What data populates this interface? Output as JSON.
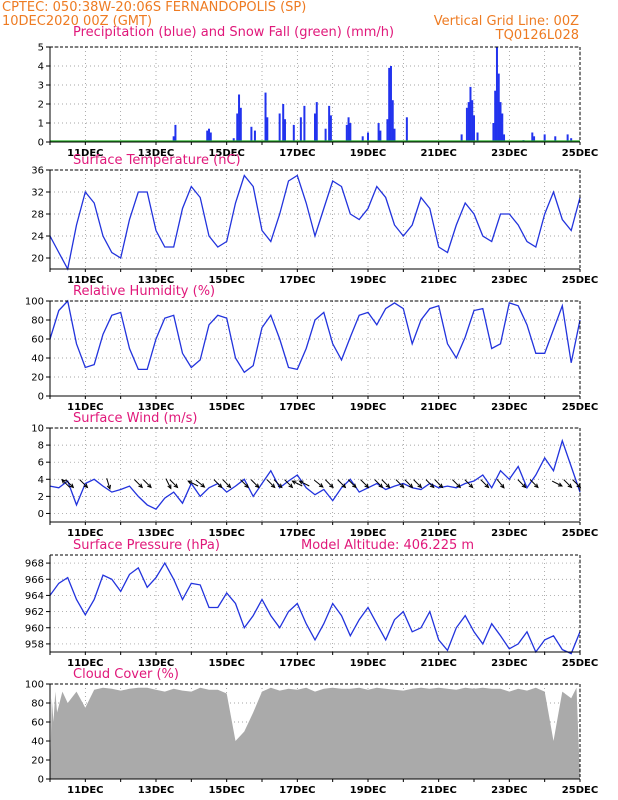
{
  "header": {
    "line1": "CPTEC:   050:38W-20:06S   FERNANDOPOLIS (SP)",
    "line2_left": "10DEC2020 00Z (GMT)",
    "line2_right": "Vertical Grid Line: 00Z",
    "code": "TQ0126L028"
  },
  "colors": {
    "header_text": "#ee7b22",
    "panel_title": "#e0187a",
    "line": "#2233dd",
    "precip": "#2233ee",
    "snow": "#22aa22",
    "cloud": "#aaaaaa",
    "grid": "#888888",
    "arrow": "#000000"
  },
  "x_tick_labels": [
    "11DEC",
    "13DEC",
    "15DEC",
    "17DEC",
    "19DEC",
    "21DEC",
    "23DEC",
    "25DEC"
  ],
  "chart_data": [
    {
      "id": "precip",
      "type": "bar",
      "title": "Precipitation (blue) and Snow Fall (green) (mm/h)",
      "x_unit": "day",
      "x_range": [
        10.0,
        25.0
      ],
      "ylim": [
        0,
        5
      ],
      "y_ticks": [
        0,
        1,
        2,
        3,
        4,
        5
      ],
      "grid": "dotted",
      "series": [
        {
          "name": "Precipitation",
          "color": "blue",
          "points": [
            [
              13.5,
              0.3
            ],
            [
              13.55,
              0.9
            ],
            [
              14.45,
              0.6
            ],
            [
              14.5,
              0.7
            ],
            [
              14.55,
              0.5
            ],
            [
              15.2,
              0.2
            ],
            [
              15.3,
              1.5
            ],
            [
              15.35,
              2.5
            ],
            [
              15.4,
              1.8
            ],
            [
              15.7,
              0.8
            ],
            [
              15.8,
              0.6
            ],
            [
              16.1,
              2.6
            ],
            [
              16.15,
              1.3
            ],
            [
              16.5,
              1.5
            ],
            [
              16.6,
              2.0
            ],
            [
              16.65,
              1.2
            ],
            [
              16.9,
              0.9
            ],
            [
              17.1,
              1.3
            ],
            [
              17.2,
              1.9
            ],
            [
              17.5,
              1.5
            ],
            [
              17.55,
              2.1
            ],
            [
              17.8,
              0.7
            ],
            [
              17.9,
              1.9
            ],
            [
              17.95,
              1.4
            ],
            [
              18.4,
              0.9
            ],
            [
              18.45,
              1.3
            ],
            [
              18.5,
              1.0
            ],
            [
              18.85,
              0.3
            ],
            [
              19.0,
              0.5
            ],
            [
              19.3,
              1.0
            ],
            [
              19.35,
              0.6
            ],
            [
              19.55,
              1.2
            ],
            [
              19.6,
              3.9
            ],
            [
              19.65,
              4.0
            ],
            [
              19.7,
              2.2
            ],
            [
              19.75,
              0.7
            ],
            [
              20.1,
              1.3
            ],
            [
              21.65,
              0.4
            ],
            [
              21.8,
              1.8
            ],
            [
              21.85,
              2.1
            ],
            [
              21.9,
              2.9
            ],
            [
              21.95,
              2.2
            ],
            [
              22.0,
              1.4
            ],
            [
              22.1,
              0.5
            ],
            [
              22.55,
              1.0
            ],
            [
              22.6,
              2.7
            ],
            [
              22.65,
              5.0
            ],
            [
              22.7,
              3.6
            ],
            [
              22.75,
              2.1
            ],
            [
              22.8,
              1.5
            ],
            [
              22.85,
              0.4
            ],
            [
              23.4,
              0.1
            ],
            [
              23.65,
              0.5
            ],
            [
              23.7,
              0.3
            ],
            [
              24.0,
              0.4
            ],
            [
              24.3,
              0.3
            ],
            [
              24.65,
              0.4
            ],
            [
              24.75,
              0.2
            ]
          ]
        },
        {
          "name": "Snow Fall",
          "color": "green",
          "constant": 0
        }
      ]
    },
    {
      "id": "temperature",
      "type": "line",
      "title": "Surface Temperature (nC)",
      "x_unit": "day",
      "x_range": [
        10.0,
        25.0
      ],
      "ylim": [
        18,
        36
      ],
      "y_ticks": [
        20,
        24,
        28,
        32,
        36
      ],
      "grid": "dotted",
      "x": [
        10.0,
        10.25,
        10.5,
        10.75,
        11.0,
        11.25,
        11.5,
        11.75,
        12.0,
        12.25,
        12.5,
        12.75,
        13.0,
        13.25,
        13.5,
        13.75,
        14.0,
        14.25,
        14.5,
        14.75,
        15.0,
        15.25,
        15.5,
        15.75,
        16.0,
        16.25,
        16.5,
        16.75,
        17.0,
        17.25,
        17.5,
        17.75,
        18.0,
        18.25,
        18.5,
        18.75,
        19.0,
        19.25,
        19.5,
        19.75,
        20.0,
        20.25,
        20.5,
        20.75,
        21.0,
        21.25,
        21.5,
        21.75,
        22.0,
        22.25,
        22.5,
        22.75,
        23.0,
        23.25,
        23.5,
        23.75,
        24.0,
        24.25,
        24.5,
        24.75,
        25.0
      ],
      "y": [
        24,
        21,
        18,
        26,
        32,
        30,
        24,
        21,
        20,
        27,
        32,
        32,
        25,
        22,
        22,
        29,
        33,
        31,
        24,
        22,
        23,
        30,
        35,
        33,
        25,
        23,
        28,
        34,
        35,
        30,
        24,
        29,
        34,
        33,
        28,
        27,
        29,
        33,
        31,
        26,
        24,
        26,
        31,
        29,
        22,
        21,
        26,
        30,
        28,
        24,
        23,
        28,
        28,
        26,
        23,
        22,
        28,
        32,
        27,
        25,
        31
      ]
    },
    {
      "id": "humidity",
      "type": "line",
      "title": "Relative Humidity (%)",
      "x_unit": "day",
      "x_range": [
        10.0,
        25.0
      ],
      "ylim": [
        0,
        100
      ],
      "y_ticks": [
        0,
        20,
        40,
        60,
        80,
        100
      ],
      "grid": "dotted",
      "x": [
        10.0,
        10.25,
        10.5,
        10.75,
        11.0,
        11.25,
        11.5,
        11.75,
        12.0,
        12.25,
        12.5,
        12.75,
        13.0,
        13.25,
        13.5,
        13.75,
        14.0,
        14.25,
        14.5,
        14.75,
        15.0,
        15.25,
        15.5,
        15.75,
        16.0,
        16.25,
        16.5,
        16.75,
        17.0,
        17.25,
        17.5,
        17.75,
        18.0,
        18.25,
        18.5,
        18.75,
        19.0,
        19.25,
        19.5,
        19.75,
        20.0,
        20.25,
        20.5,
        20.75,
        21.0,
        21.25,
        21.5,
        21.75,
        22.0,
        22.25,
        22.5,
        22.75,
        23.0,
        23.25,
        23.5,
        23.75,
        24.0,
        24.25,
        24.5,
        24.75,
        25.0
      ],
      "y": [
        60,
        90,
        100,
        55,
        30,
        33,
        65,
        85,
        88,
        50,
        28,
        28,
        60,
        82,
        85,
        45,
        30,
        38,
        75,
        85,
        82,
        40,
        25,
        32,
        72,
        85,
        60,
        30,
        28,
        50,
        80,
        88,
        55,
        38,
        62,
        85,
        88,
        75,
        92,
        98,
        92,
        55,
        80,
        92,
        95,
        55,
        40,
        62,
        90,
        92,
        50,
        55,
        98,
        95,
        75,
        45,
        45,
        70,
        95,
        35,
        80
      ]
    },
    {
      "id": "wind",
      "type": "line",
      "title": "Surface Wind (m/s)",
      "x_unit": "day",
      "x_range": [
        10.0,
        25.0
      ],
      "ylim": [
        -1,
        10
      ],
      "y_ticks": [
        0,
        2,
        4,
        6,
        8,
        10
      ],
      "grid": "dotted",
      "x": [
        10.0,
        10.25,
        10.5,
        10.75,
        11.0,
        11.25,
        11.5,
        11.75,
        12.0,
        12.25,
        12.5,
        12.75,
        13.0,
        13.25,
        13.5,
        13.75,
        14.0,
        14.25,
        14.5,
        14.75,
        15.0,
        15.25,
        15.5,
        15.75,
        16.0,
        16.25,
        16.5,
        16.75,
        17.0,
        17.25,
        17.5,
        17.75,
        18.0,
        18.25,
        18.5,
        18.75,
        19.0,
        19.25,
        19.5,
        19.75,
        20.0,
        20.25,
        20.5,
        20.75,
        21.0,
        21.25,
        21.5,
        21.75,
        22.0,
        22.25,
        22.5,
        22.75,
        23.0,
        23.25,
        23.5,
        23.75,
        24.0,
        24.25,
        24.5,
        24.75,
        25.0
      ],
      "y": [
        3.2,
        3.0,
        3.8,
        1.0,
        3.5,
        4.0,
        3.2,
        2.5,
        2.8,
        3.2,
        2.0,
        1.0,
        0.5,
        1.8,
        2.5,
        1.2,
        3.5,
        2.0,
        3.0,
        3.5,
        2.5,
        3.2,
        4.0,
        2.0,
        3.5,
        5.0,
        3.0,
        3.8,
        4.5,
        3.0,
        2.2,
        2.8,
        1.5,
        3.0,
        4.0,
        2.5,
        3.0,
        3.5,
        2.8,
        3.2,
        3.5,
        3.0,
        2.8,
        3.5,
        3.0,
        3.2,
        3.0,
        3.5,
        3.8,
        4.5,
        3.0,
        5.0,
        4.0,
        5.5,
        3.0,
        4.5,
        6.5,
        5.0,
        8.5,
        5.5,
        2.5
      ],
      "vectors": [
        {
          "x": 10.45,
          "u": -1,
          "v": 1
        },
        {
          "x": 10.55,
          "u": 1,
          "v": -1
        },
        {
          "x": 10.95,
          "u": 1,
          "v": -1
        },
        {
          "x": 11.65,
          "u": 0.3,
          "v": -1
        },
        {
          "x": 12.5,
          "u": 1,
          "v": -1
        },
        {
          "x": 12.75,
          "u": 1,
          "v": -1
        },
        {
          "x": 13.35,
          "u": 0.5,
          "v": -1
        },
        {
          "x": 13.5,
          "u": 1,
          "v": -1
        },
        {
          "x": 14.05,
          "u": -1,
          "v": 0.5
        },
        {
          "x": 14.25,
          "u": 1,
          "v": -0.8
        },
        {
          "x": 14.75,
          "u": 1,
          "v": -1
        },
        {
          "x": 15.0,
          "u": 1,
          "v": -1
        },
        {
          "x": 15.5,
          "u": 1,
          "v": -1
        },
        {
          "x": 15.8,
          "u": 1,
          "v": -1
        },
        {
          "x": 16.25,
          "u": 1,
          "v": -1
        },
        {
          "x": 16.45,
          "u": 1,
          "v": -1
        },
        {
          "x": 16.75,
          "u": 1,
          "v": -1
        },
        {
          "x": 17.0,
          "u": -1,
          "v": 0.5
        },
        {
          "x": 17.2,
          "u": -1,
          "v": 0.5
        },
        {
          "x": 17.6,
          "u": 1,
          "v": -0.8
        },
        {
          "x": 17.9,
          "u": 1,
          "v": -1
        },
        {
          "x": 18.25,
          "u": 1,
          "v": -1
        },
        {
          "x": 18.55,
          "u": 1,
          "v": -1
        },
        {
          "x": 18.9,
          "u": 1,
          "v": -1
        },
        {
          "x": 19.3,
          "u": 1,
          "v": -1
        },
        {
          "x": 19.5,
          "u": 1,
          "v": -1
        },
        {
          "x": 19.9,
          "u": 1,
          "v": -1
        },
        {
          "x": 20.15,
          "u": 1,
          "v": -1
        },
        {
          "x": 20.4,
          "u": 1,
          "v": -1
        },
        {
          "x": 20.75,
          "u": 1,
          "v": -1
        },
        {
          "x": 21.0,
          "u": 1,
          "v": -1
        },
        {
          "x": 21.5,
          "u": 1,
          "v": -1
        },
        {
          "x": 21.85,
          "u": 1,
          "v": -1
        },
        {
          "x": 22.3,
          "u": 1,
          "v": -1
        },
        {
          "x": 22.75,
          "u": 0.8,
          "v": -1
        },
        {
          "x": 23.35,
          "u": 1,
          "v": -1
        },
        {
          "x": 23.7,
          "u": 1,
          "v": -1
        },
        {
          "x": 24.35,
          "u": 1,
          "v": -0.5
        },
        {
          "x": 24.65,
          "u": 1,
          "v": -1
        },
        {
          "x": 24.9,
          "u": 1,
          "v": -1
        }
      ]
    },
    {
      "id": "pressure",
      "type": "line",
      "title": "Surface Pressure (hPa)",
      "annotation": "Model Altitude: 406.225 m",
      "x_unit": "day",
      "x_range": [
        10.0,
        25.0
      ],
      "ylim": [
        957,
        969
      ],
      "y_ticks": [
        958,
        960,
        962,
        964,
        966,
        968
      ],
      "grid": "dotted",
      "x": [
        10.0,
        10.25,
        10.5,
        10.75,
        11.0,
        11.25,
        11.5,
        11.75,
        12.0,
        12.25,
        12.5,
        12.75,
        13.0,
        13.25,
        13.5,
        13.75,
        14.0,
        14.25,
        14.5,
        14.75,
        15.0,
        15.25,
        15.5,
        15.75,
        16.0,
        16.25,
        16.5,
        16.75,
        17.0,
        17.25,
        17.5,
        17.75,
        18.0,
        18.25,
        18.5,
        18.75,
        19.0,
        19.25,
        19.5,
        19.75,
        20.0,
        20.25,
        20.5,
        20.75,
        21.0,
        21.25,
        21.5,
        21.75,
        22.0,
        22.25,
        22.5,
        22.75,
        23.0,
        23.25,
        23.5,
        23.75,
        24.0,
        24.25,
        24.5,
        24.75,
        25.0
      ],
      "y": [
        964,
        965.5,
        966.2,
        963.5,
        961.6,
        963.5,
        966.5,
        966,
        964.5,
        966.6,
        967.4,
        965,
        966.2,
        968,
        966,
        963.5,
        965.5,
        965.3,
        962.5,
        962.5,
        964.3,
        963,
        960,
        961.5,
        963.5,
        961.5,
        960,
        962,
        963,
        960.5,
        958.5,
        960.5,
        963,
        961.5,
        959,
        961,
        962.5,
        960.5,
        958.5,
        961,
        962,
        959.5,
        960,
        962,
        958.5,
        957.2,
        960,
        961.5,
        959.5,
        958,
        960.5,
        959,
        957.4,
        958,
        959.5,
        957,
        958.5,
        959,
        957.3,
        956.8,
        959.5
      ]
    },
    {
      "id": "cloud",
      "type": "area",
      "title": "Cloud Cover (%)",
      "x_unit": "day",
      "x_range": [
        10.0,
        25.0
      ],
      "ylim": [
        0,
        100
      ],
      "y_ticks": [
        0,
        20,
        40,
        60,
        80,
        100
      ],
      "grid": "dotted",
      "x": [
        10.0,
        10.05,
        10.1,
        10.15,
        10.2,
        10.35,
        10.5,
        10.75,
        11.0,
        11.25,
        11.5,
        11.75,
        12.0,
        12.25,
        12.5,
        12.75,
        13.0,
        13.25,
        13.5,
        13.75,
        14.0,
        14.25,
        14.5,
        14.75,
        15.0,
        15.25,
        15.5,
        15.75,
        16.0,
        16.25,
        16.5,
        16.75,
        17.0,
        17.25,
        17.5,
        17.75,
        18.0,
        18.25,
        18.5,
        18.75,
        19.0,
        19.25,
        19.5,
        19.75,
        20.0,
        20.25,
        20.5,
        20.75,
        21.0,
        21.25,
        21.5,
        21.75,
        22.0,
        22.25,
        22.5,
        22.75,
        23.0,
        23.25,
        23.5,
        23.75,
        24.0,
        24.25,
        24.5,
        24.75,
        24.9,
        25.0
      ],
      "y": [
        0,
        85,
        60,
        92,
        70,
        92,
        80,
        92,
        75,
        94,
        96,
        95,
        93,
        95,
        96,
        96,
        94,
        92,
        95,
        93,
        92,
        96,
        94,
        94,
        90,
        40,
        50,
        70,
        92,
        96,
        93,
        95,
        94,
        96,
        92,
        95,
        96,
        95,
        95,
        96,
        94,
        96,
        95,
        94,
        93,
        95,
        96,
        95,
        96,
        95,
        94,
        96,
        95,
        96,
        95,
        95,
        92,
        95,
        93,
        96,
        92,
        40,
        92,
        85,
        96,
        0
      ]
    }
  ]
}
